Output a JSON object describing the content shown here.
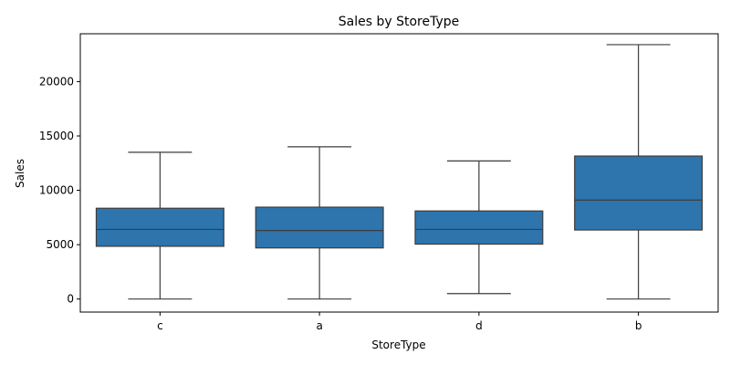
{
  "chart_data": {
    "type": "box",
    "title": "Sales by StoreType",
    "xlabel": "StoreType",
    "ylabel": "Sales",
    "ylim": [
      -1200,
      24400
    ],
    "yticks": [
      0,
      5000,
      10000,
      15000,
      20000
    ],
    "grid": false,
    "categories": [
      "c",
      "a",
      "d",
      "b"
    ],
    "boxes": [
      {
        "category": "c",
        "whisker_low": 0,
        "q1": 4850,
        "median": 6400,
        "q3": 8350,
        "whisker_high": 13500
      },
      {
        "category": "a",
        "whisker_low": 0,
        "q1": 4700,
        "median": 6300,
        "q3": 8450,
        "whisker_high": 14000
      },
      {
        "category": "d",
        "whisker_low": 500,
        "q1": 5050,
        "median": 6400,
        "q3": 8100,
        "whisker_high": 12700
      },
      {
        "category": "b",
        "whisker_low": 0,
        "q1": 6350,
        "median": 9100,
        "q3": 13150,
        "whisker_high": 23400
      }
    ],
    "box_color": "#2e74ad",
    "line_color": "#3d3d3d"
  }
}
